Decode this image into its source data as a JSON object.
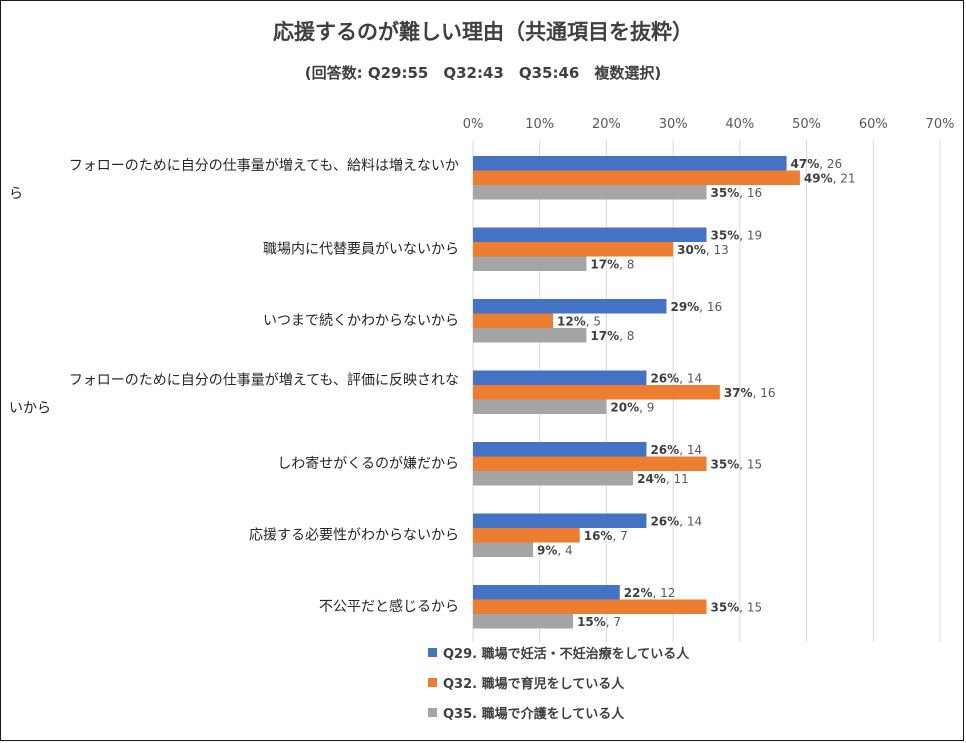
{
  "chart_data": {
    "type": "bar",
    "orientation": "horizontal",
    "title": "応援するのが難しい理由（共通項目を抜粋）",
    "subtitle": "(回答数: Q29:55　Q32:43　Q35:46　複数選択)",
    "xlim": [
      0,
      70
    ],
    "x_ticks": [
      "0%",
      "10%",
      "20%",
      "30%",
      "40%",
      "50%",
      "60%",
      "70%"
    ],
    "grid": true,
    "legend_position": "bottom",
    "categories": [
      [
        "フォローのために自分の仕事量が増えても、給料は増えないか",
        "ら"
      ],
      [
        "職場内に代替要員がいないから"
      ],
      [
        "いつまで続くかわからないから"
      ],
      [
        "フォローのために自分の仕事量が増えても、評価に反映されな",
        "いから"
      ],
      [
        "しわ寄せがくるのが嫌だから"
      ],
      [
        "応援する必要性がわからないから"
      ],
      [
        "不公平だと感じるから"
      ]
    ],
    "series": [
      {
        "name": "Q29. 職場で妊活・不妊治療をしている人",
        "color": "#4472c4",
        "values": [
          47,
          35,
          29,
          26,
          26,
          26,
          22
        ],
        "labels": [
          {
            "pct": "47%",
            "n": ", 26"
          },
          {
            "pct": "35%",
            "n": ", 19"
          },
          {
            "pct": "29%",
            "n": ", 16"
          },
          {
            "pct": "26%",
            "n": ", 14"
          },
          {
            "pct": "26%",
            "n": ", 14"
          },
          {
            "pct": "26%",
            "n": ", 14"
          },
          {
            "pct": "22%",
            "n": ", 12"
          }
        ]
      },
      {
        "name": "Q32. 職場で育児をしている人",
        "color": "#ed7d31",
        "values": [
          49,
          30,
          12,
          37,
          35,
          16,
          35
        ],
        "labels": [
          {
            "pct": "49%",
            "n": ", 21"
          },
          {
            "pct": "30%",
            "n": ", 13"
          },
          {
            "pct": "12%",
            "n": ", 5"
          },
          {
            "pct": "37%",
            "n": ", 16"
          },
          {
            "pct": "35%",
            "n": ", 15"
          },
          {
            "pct": "16%",
            "n": ", 7"
          },
          {
            "pct": "35%",
            "n": ", 15"
          }
        ]
      },
      {
        "name": "Q35. 職場で介護をしている人",
        "color": "#a5a5a5",
        "values": [
          35,
          17,
          17,
          20,
          24,
          9,
          15
        ],
        "labels": [
          {
            "pct": "35%",
            "n": ", 16"
          },
          {
            "pct": "17%",
            "n": ", 8"
          },
          {
            "pct": "17%",
            "n": ", 8"
          },
          {
            "pct": "20%",
            "n": ", 9"
          },
          {
            "pct": "24%",
            "n": ", 11"
          },
          {
            "pct": "9%",
            "n": ", 4"
          },
          {
            "pct": "15%",
            "n": ", 7"
          }
        ]
      }
    ]
  }
}
